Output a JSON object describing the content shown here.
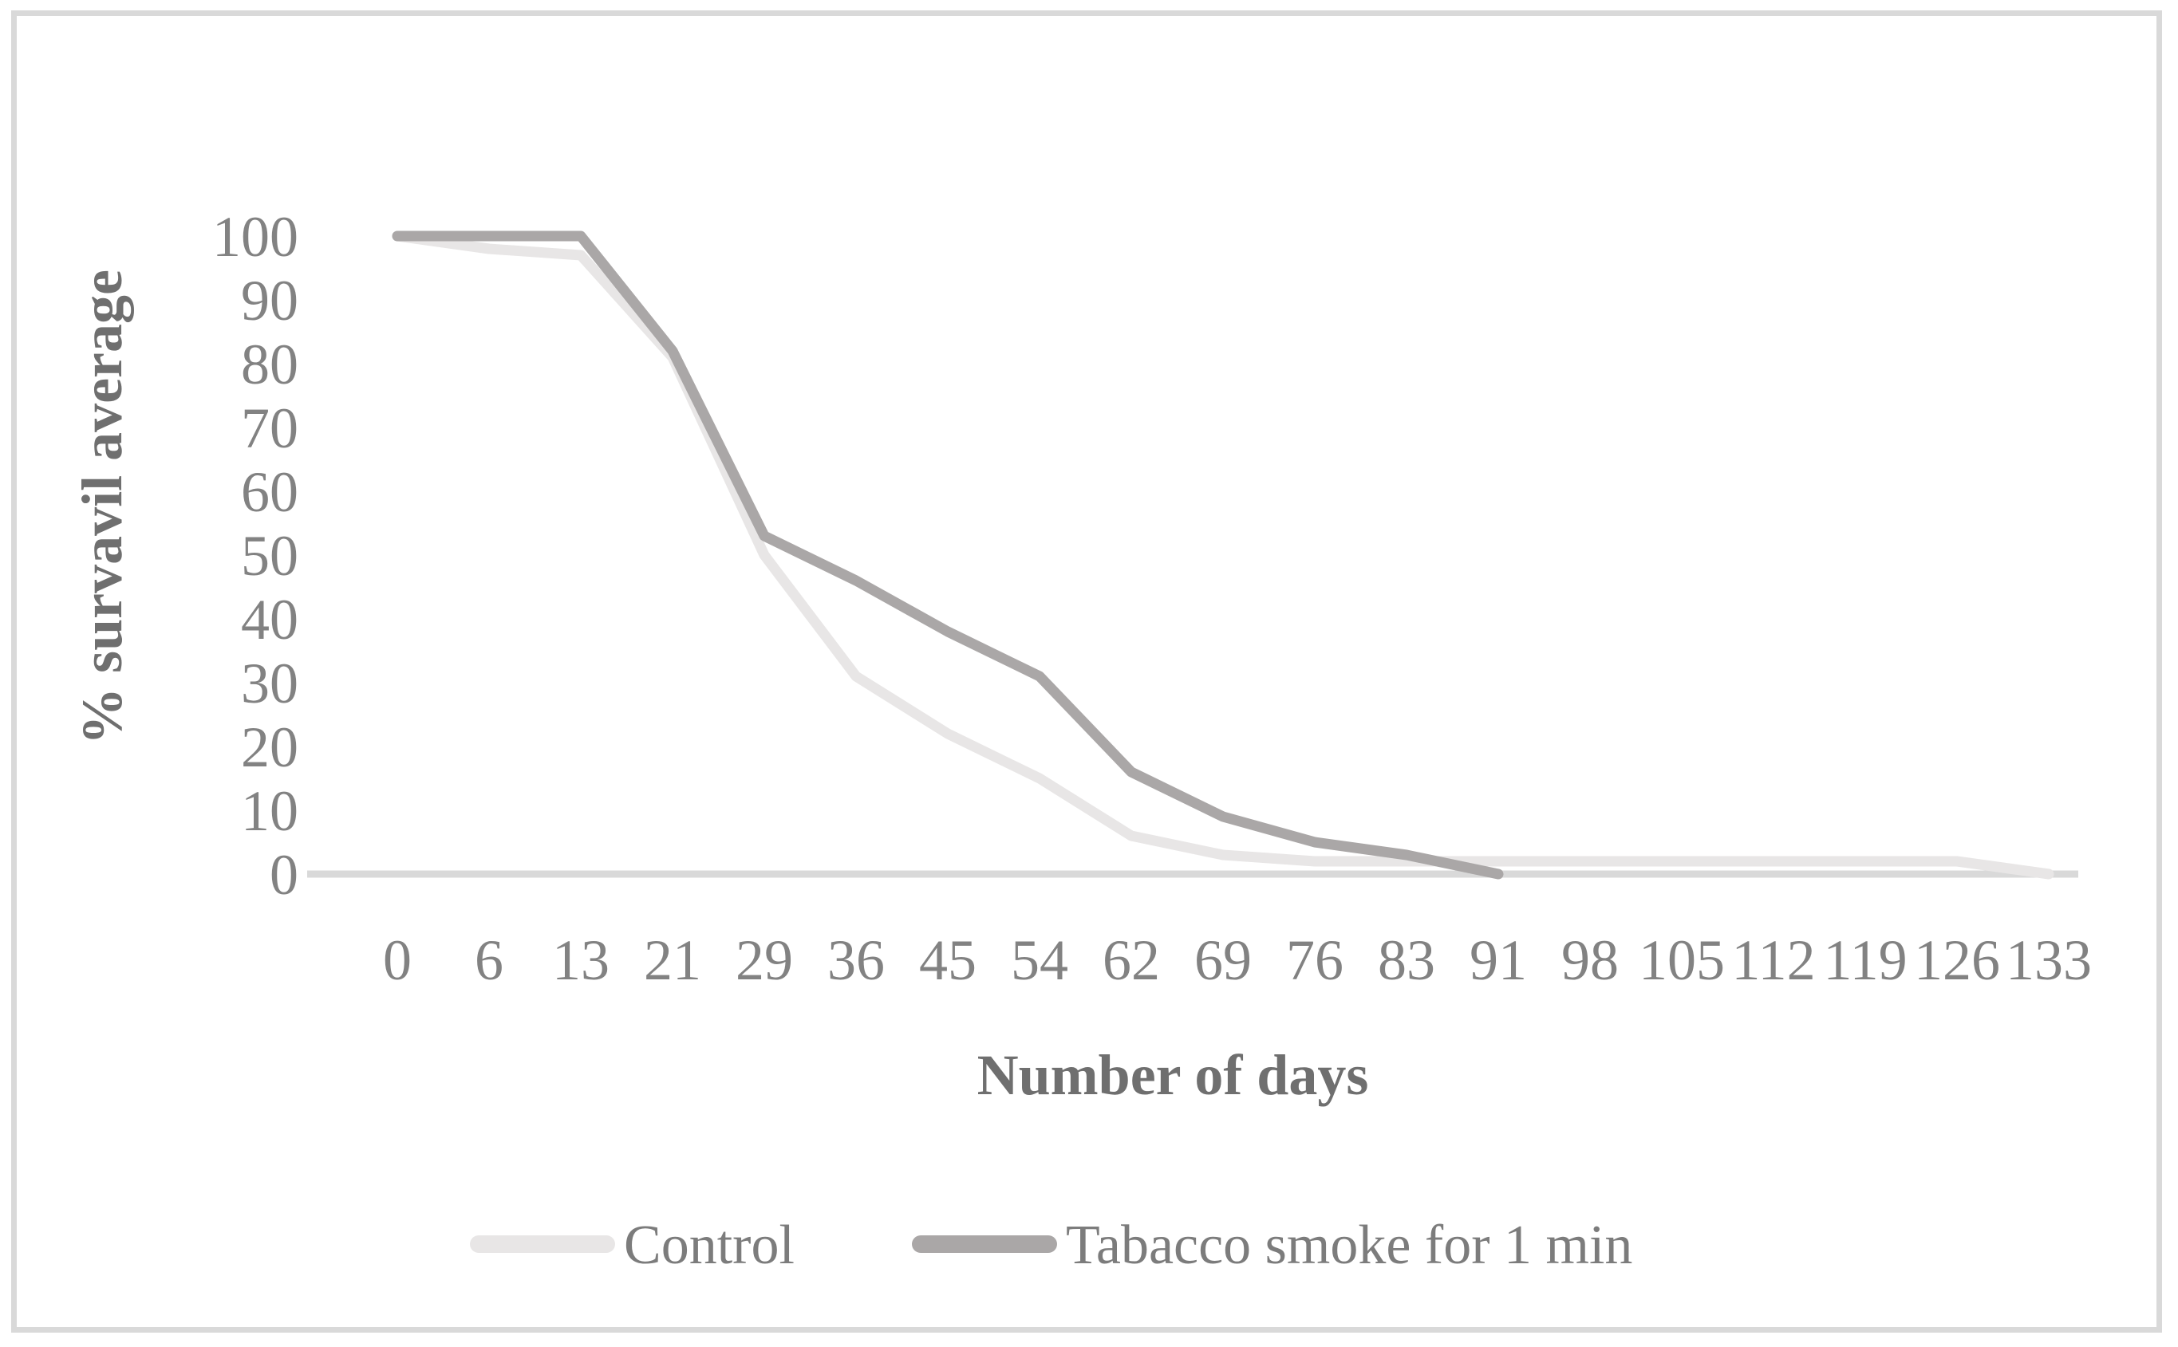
{
  "chart_data": {
    "type": "line",
    "title": "",
    "xlabel": "Number of days",
    "ylabel": "% survavil average",
    "x": [
      0,
      6,
      13,
      21,
      29,
      36,
      45,
      54,
      62,
      69,
      76,
      83,
      91,
      98,
      105,
      112,
      119,
      126,
      133
    ],
    "yticks": [
      0,
      10,
      20,
      30,
      40,
      50,
      60,
      70,
      80,
      90,
      100
    ],
    "ylim": [
      0,
      100
    ],
    "grid": false,
    "legend_position": "bottom",
    "series": [
      {
        "name": "Control",
        "color": "#e8e6e6",
        "values": [
          100,
          98,
          97,
          81,
          50,
          31,
          22,
          15,
          6,
          3,
          2,
          2,
          2,
          2,
          2,
          2,
          2,
          2,
          0
        ]
      },
      {
        "name": "Tabacco smoke for 1 min",
        "color": "#aaa7a7",
        "values": [
          100,
          100,
          100,
          82,
          53,
          46,
          38,
          31,
          16,
          9,
          5,
          3,
          0
        ]
      }
    ]
  },
  "colors": {
    "background": "#ffffff",
    "frame_border": "#d9d9d9",
    "axis_line": "#d9d9d9",
    "tick_text": "#828282",
    "axis_title_text": "#6f6f6f",
    "legend_text": "#7c7c7c"
  }
}
